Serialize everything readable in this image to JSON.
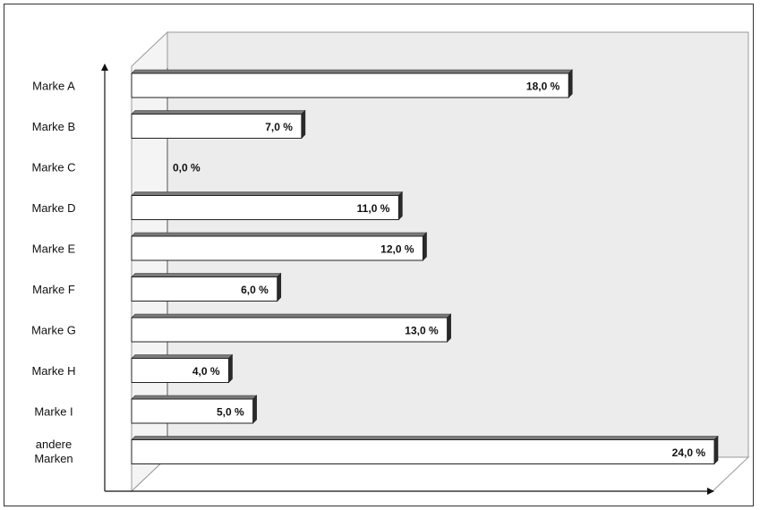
{
  "chart_data": {
    "type": "bar",
    "orientation": "horizontal",
    "categories": [
      "Marke A",
      "Marke B",
      "Marke C",
      "Marke D",
      "Marke E",
      "Marke F",
      "Marke G",
      "Marke H",
      "Marke I",
      "andere Marken"
    ],
    "values": [
      18.0,
      7.0,
      0.0,
      11.0,
      12.0,
      6.0,
      13.0,
      4.0,
      5.0,
      24.0
    ],
    "value_labels": [
      "18,0 %",
      "7,0 %",
      "0,0 %",
      "11,0 %",
      "12,0 %",
      "6,0 %",
      "13,0 %",
      "4,0 %",
      "5,0 %",
      "24,0 %"
    ],
    "title": "",
    "xlabel": "",
    "ylabel": "",
    "xlim": [
      0,
      24
    ],
    "grid": false,
    "legend": "none",
    "style": "3d",
    "colors": {
      "bar_face": "#ffffff",
      "bar_top": "#7a7a7a",
      "bar_side": "#2a2a2a",
      "back_wall": "#ececec",
      "floor": "#ffffff",
      "axis": "#111111"
    }
  }
}
